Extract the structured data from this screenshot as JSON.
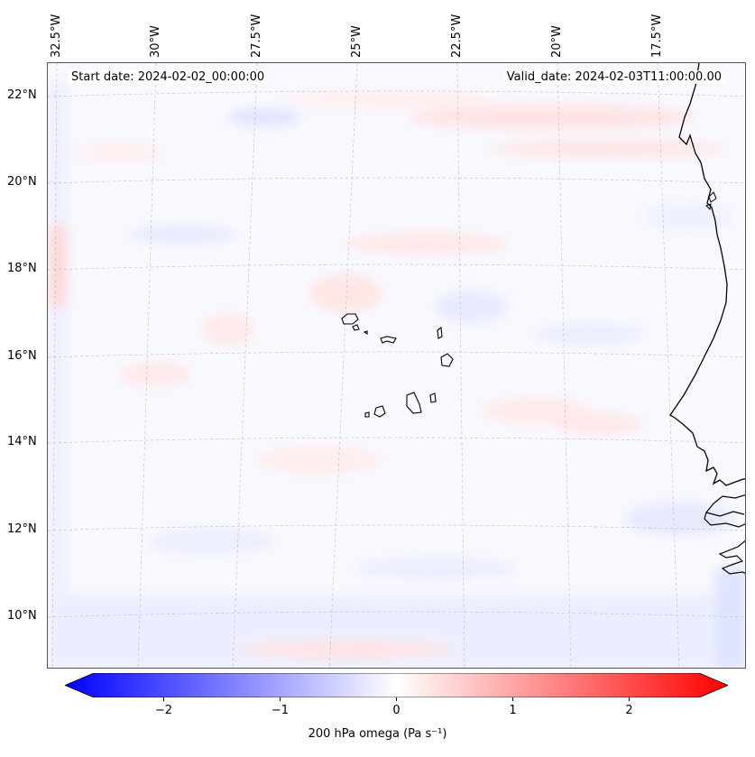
{
  "map": {
    "longitude_labels": [
      "32.5°W",
      "30°W",
      "27.5°W",
      "25°W",
      "22.5°W",
      "20°W",
      "17.5°W"
    ],
    "latitude_labels": [
      "22°N",
      "20°N",
      "18°N",
      "16°N",
      "14°N",
      "12°N",
      "10°N"
    ],
    "start_date": "Start date: 2024-02-02_00:00:00",
    "valid_date": "Valid_date: 2024-02-03T11:00:00.00",
    "coastline_color": "#000000",
    "gridline_color": "#bbbbbb"
  },
  "colorbar": {
    "label": "200 hPa omega (Pa s⁻¹)",
    "ticks": [
      "−2",
      "−1",
      "0",
      "1",
      "2"
    ],
    "tick_values": [
      -2,
      -1,
      0,
      1,
      2
    ],
    "range": [
      -2.6,
      2.6
    ],
    "low_color": "#0000ff",
    "mid_color": "#ffffff",
    "high_color": "#ff0000"
  }
}
